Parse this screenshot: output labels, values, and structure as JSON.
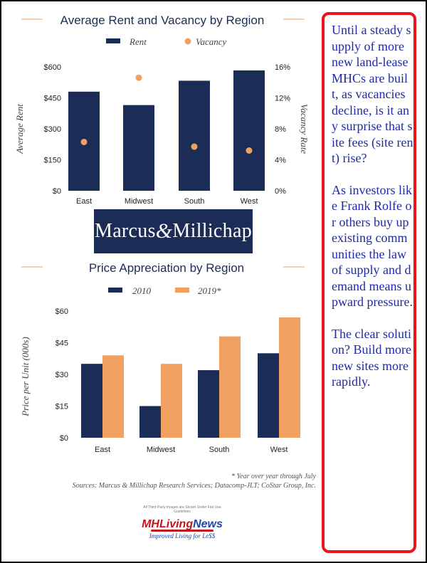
{
  "chart_data": [
    {
      "type": "bar",
      "title": "Average Rent and Vacancy by Region",
      "categories": [
        "East",
        "Midwest",
        "South",
        "West"
      ],
      "series": [
        {
          "name": "Rent",
          "kind": "bar",
          "axis": "left",
          "values": [
            480,
            415,
            533,
            583
          ]
        },
        {
          "name": "Vacancy",
          "kind": "scatter",
          "axis": "right",
          "values": [
            6.3,
            14.6,
            5.7,
            5.2
          ]
        }
      ],
      "ylabel": "Average Rent",
      "ylabel_right": "Vacancy Rate",
      "ylim": [
        0,
        600
      ],
      "ylim_right": [
        0,
        16
      ],
      "yticks": [
        "$0",
        "$150",
        "$300",
        "$450",
        "$600"
      ],
      "yticks_right": [
        "0%",
        "4%",
        "8%",
        "12%",
        "16%"
      ],
      "legend_position": "top",
      "grid": false
    },
    {
      "type": "bar",
      "title": "Price Appreciation by Region",
      "categories": [
        "East",
        "Midwest",
        "South",
        "West"
      ],
      "series": [
        {
          "name": "2010",
          "values": [
            35,
            15,
            32,
            40
          ]
        },
        {
          "name": "2019*",
          "values": [
            39,
            35,
            48,
            57
          ]
        }
      ],
      "ylabel": "Price per Unit (000s)",
      "ylim": [
        0,
        60
      ],
      "yticks": [
        "$0",
        "$15",
        "$30",
        "$45",
        "$60"
      ],
      "legend_position": "top",
      "grid": false
    }
  ],
  "colors": {
    "navy": "#1b2d57",
    "orange": "#f0a060",
    "callout_border": "#e8151b",
    "callout_text": "#1f2aa6"
  },
  "logo": {
    "first": "Marcus",
    "amp": "&",
    "second": "Millichap"
  },
  "notes": {
    "footnote": "* Year over year through July",
    "sources": "Sources: Marcus & Millichap Research Services; Datacomp-JLT; CoStar Group, Inc."
  },
  "mhln": {
    "disclaimer": "All Third Party images are Shown Under Fair Use Guidelines",
    "brand_a": "MHLiving",
    "brand_b": "News",
    "tagline": "Improved Living for Le$$"
  },
  "callout": {
    "p1": "Until a steady supply of more new land-lease MHCs are built, as vacancies decline, is it any surprise that site fees (site rent) rise?",
    "p2": "As investors like Frank Rolfe or others buy up existing communities the law of supply and demand means upward pressure.",
    "p3": "The clear solution? Build more new sites more rapidly."
  }
}
